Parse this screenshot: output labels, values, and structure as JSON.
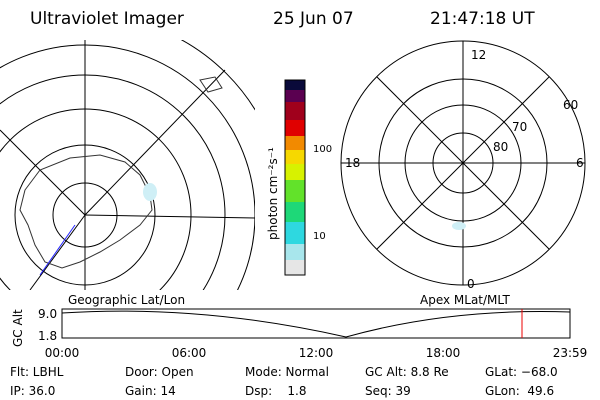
{
  "header": {
    "title": "Ultraviolet Imager",
    "date": "25 Jun 07",
    "time": "21:47:18 UT"
  },
  "colorbar": {
    "label": "photon cm⁻²s⁻¹",
    "ticks": [
      "100",
      "10"
    ]
  },
  "left_map": {
    "label": "Geographic Lat/Lon"
  },
  "right_map": {
    "label": "Apex MLat/MLT",
    "mlt": [
      "12",
      "18",
      "6",
      "0"
    ],
    "mlat": [
      "60",
      "70",
      "80"
    ]
  },
  "timeline": {
    "axis_label": "GC Alt",
    "yticks": [
      "9.0",
      "1.8"
    ],
    "xticks": [
      "00:00",
      "06:00",
      "12:00",
      "18:00",
      "23:59"
    ]
  },
  "info": {
    "rows": [
      [
        "Flt: LBHL",
        "Door: Open",
        "Mode: Normal",
        "GC Alt: 8.8 Re",
        "GLat: −68.0"
      ],
      [
        "IP: 36.0",
        "Gain: 14",
        "Dsp:    1.8",
        "Seq: 39",
        "GLon:  49.6"
      ]
    ]
  }
}
